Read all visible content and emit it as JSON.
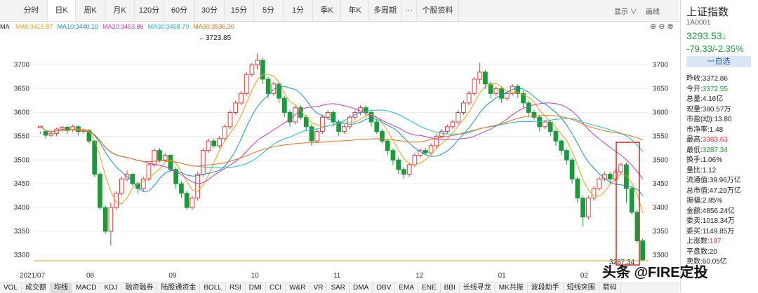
{
  "toolbar": {
    "tabs": [
      "分时",
      "日K",
      "周K",
      "月K",
      "120分",
      "60分",
      "30分",
      "15分",
      "5分",
      "1分",
      "季K",
      "年K",
      "多周期",
      "···",
      "个股资料"
    ],
    "active_tab": "日K",
    "display_label": "显示",
    "draw_label": "画线"
  },
  "ma_bar": {
    "prefix": "MA",
    "items": [
      {
        "label": "MA5:3415.87",
        "color": "#e3a21a"
      },
      {
        "label": "MA10:3440.10",
        "color": "#1a8fd0"
      },
      {
        "label": "MA20:3453.86",
        "color": "#c13dbf"
      },
      {
        "label": "MA30:3458.79",
        "color": "#1ab8d8"
      },
      {
        "label": "MA60:3536.30",
        "color": "#e8701a"
      }
    ]
  },
  "chart_data": {
    "type": "candlestick",
    "y_ticks": [
      3700,
      3650,
      3600,
      3550,
      3500,
      3450,
      3400,
      3350,
      3300
    ],
    "ylim": [
      3285,
      3760
    ],
    "x_labels": [
      "2021/07",
      "08",
      "09",
      "10",
      "11",
      "12",
      "01",
      "02"
    ],
    "annotations": [
      {
        "text": "3723.85",
        "kind": "high"
      },
      {
        "text": "3287.34",
        "kind": "low"
      }
    ],
    "series": [
      {
        "name": "MA5",
        "color": "#e3a21a"
      },
      {
        "name": "MA10",
        "color": "#1a8fd0"
      },
      {
        "name": "MA20",
        "color": "#c13dbf"
      },
      {
        "name": "MA30",
        "color": "#1ab8d8"
      },
      {
        "name": "MA60",
        "color": "#e8701a"
      }
    ],
    "candles": [
      [
        3568,
        3571,
        3560,
        3575,
        3555
      ],
      [
        3560,
        3552,
        3545,
        3562
      ],
      [
        3552,
        3556,
        3548,
        3560
      ],
      [
        3556,
        3565,
        3550,
        3568
      ],
      [
        3565,
        3569,
        3560,
        3572
      ],
      [
        3569,
        3563,
        3555,
        3572
      ],
      [
        3563,
        3570,
        3558,
        3575
      ],
      [
        3570,
        3560,
        3552,
        3573
      ],
      [
        3560,
        3562,
        3555,
        3565
      ],
      [
        3562,
        3540,
        3535,
        3565
      ],
      [
        3540,
        3470,
        3465,
        3542
      ],
      [
        3470,
        3400,
        3395,
        3475
      ],
      [
        3400,
        3350,
        3345,
        3405
      ],
      [
        3350,
        3400,
        3320,
        3410
      ],
      [
        3400,
        3430,
        3395,
        3435
      ],
      [
        3430,
        3460,
        3425,
        3465
      ],
      [
        3460,
        3470,
        3455,
        3478
      ],
      [
        3470,
        3450,
        3445,
        3472
      ],
      [
        3450,
        3440,
        3430,
        3455
      ],
      [
        3440,
        3460,
        3435,
        3465
      ],
      [
        3460,
        3490,
        3455,
        3495
      ],
      [
        3490,
        3520,
        3485,
        3525
      ],
      [
        3520,
        3500,
        3495,
        3525
      ],
      [
        3500,
        3510,
        3495,
        3515
      ],
      [
        3510,
        3480,
        3475,
        3512
      ],
      [
        3480,
        3450,
        3440,
        3485
      ],
      [
        3450,
        3430,
        3420,
        3455
      ],
      [
        3430,
        3400,
        3395,
        3435
      ],
      [
        3400,
        3420,
        3395,
        3425
      ],
      [
        3420,
        3470,
        3415,
        3475
      ],
      [
        3470,
        3520,
        3465,
        3525
      ],
      [
        3520,
        3540,
        3515,
        3545
      ],
      [
        3540,
        3530,
        3525,
        3545
      ],
      [
        3530,
        3545,
        3525,
        3550
      ],
      [
        3545,
        3570,
        3540,
        3575
      ],
      [
        3570,
        3600,
        3565,
        3605
      ],
      [
        3600,
        3620,
        3595,
        3625
      ],
      [
        3620,
        3640,
        3615,
        3645
      ],
      [
        3640,
        3680,
        3635,
        3685
      ],
      [
        3680,
        3700,
        3675,
        3705
      ],
      [
        3700,
        3710,
        3690,
        3724
      ],
      [
        3710,
        3670,
        3660,
        3715
      ],
      [
        3670,
        3640,
        3630,
        3675
      ],
      [
        3640,
        3660,
        3635,
        3665
      ],
      [
        3660,
        3630,
        3620,
        3665
      ],
      [
        3630,
        3600,
        3590,
        3635
      ],
      [
        3600,
        3580,
        3570,
        3605
      ],
      [
        3580,
        3610,
        3575,
        3615
      ],
      [
        3610,
        3590,
        3585,
        3615
      ],
      [
        3590,
        3570,
        3560,
        3595
      ],
      [
        3570,
        3540,
        3530,
        3575
      ],
      [
        3540,
        3560,
        3535,
        3565
      ],
      [
        3560,
        3590,
        3555,
        3595
      ],
      [
        3590,
        3600,
        3585,
        3605
      ],
      [
        3600,
        3580,
        3570,
        3605
      ],
      [
        3580,
        3560,
        3550,
        3585
      ],
      [
        3560,
        3570,
        3555,
        3575
      ],
      [
        3570,
        3590,
        3565,
        3595
      ],
      [
        3590,
        3600,
        3585,
        3605
      ],
      [
        3600,
        3610,
        3595,
        3615
      ],
      [
        3610,
        3600,
        3590,
        3615
      ],
      [
        3600,
        3580,
        3570,
        3605
      ],
      [
        3580,
        3560,
        3555,
        3585
      ],
      [
        3560,
        3540,
        3535,
        3565
      ],
      [
        3540,
        3520,
        3510,
        3545
      ],
      [
        3520,
        3500,
        3490,
        3525
      ],
      [
        3500,
        3480,
        3470,
        3505
      ],
      [
        3480,
        3470,
        3460,
        3485
      ],
      [
        3470,
        3490,
        3465,
        3495
      ],
      [
        3490,
        3510,
        3485,
        3515
      ],
      [
        3510,
        3520,
        3505,
        3525
      ],
      [
        3520,
        3515,
        3510,
        3525
      ],
      [
        3515,
        3530,
        3510,
        3535
      ],
      [
        3530,
        3550,
        3525,
        3555
      ],
      [
        3550,
        3560,
        3545,
        3565
      ],
      [
        3560,
        3570,
        3555,
        3575
      ],
      [
        3570,
        3580,
        3565,
        3585
      ],
      [
        3580,
        3600,
        3575,
        3605
      ],
      [
        3600,
        3620,
        3595,
        3625
      ],
      [
        3620,
        3640,
        3615,
        3645
      ],
      [
        3640,
        3670,
        3635,
        3675
      ],
      [
        3670,
        3685,
        3660,
        3705
      ],
      [
        3685,
        3660,
        3650,
        3690
      ],
      [
        3660,
        3640,
        3630,
        3665
      ],
      [
        3640,
        3650,
        3635,
        3655
      ],
      [
        3650,
        3630,
        3620,
        3655
      ],
      [
        3630,
        3640,
        3625,
        3645
      ],
      [
        3640,
        3655,
        3635,
        3660
      ],
      [
        3655,
        3640,
        3630,
        3660
      ],
      [
        3640,
        3620,
        3610,
        3645
      ],
      [
        3620,
        3600,
        3590,
        3625
      ],
      [
        3600,
        3590,
        3585,
        3605
      ],
      [
        3590,
        3570,
        3560,
        3595
      ],
      [
        3570,
        3580,
        3565,
        3585
      ],
      [
        3580,
        3560,
        3550,
        3585
      ],
      [
        3560,
        3540,
        3530,
        3565
      ],
      [
        3540,
        3520,
        3510,
        3545
      ],
      [
        3520,
        3500,
        3490,
        3525
      ],
      [
        3500,
        3460,
        3450,
        3505
      ],
      [
        3460,
        3420,
        3410,
        3465
      ],
      [
        3420,
        3380,
        3360,
        3425
      ],
      [
        3380,
        3420,
        3375,
        3425
      ],
      [
        3420,
        3440,
        3415,
        3445
      ],
      [
        3440,
        3460,
        3435,
        3465
      ],
      [
        3460,
        3470,
        3455,
        3475
      ],
      [
        3470,
        3460,
        3450,
        3475
      ],
      [
        3460,
        3475,
        3455,
        3480
      ],
      [
        3475,
        3490,
        3470,
        3495
      ],
      [
        3490,
        3440,
        3410,
        3495
      ],
      [
        3440,
        3390,
        3385,
        3445
      ],
      [
        3390,
        3330,
        3325,
        3395
      ],
      [
        3330,
        3290,
        3287,
        3335
      ]
    ]
  },
  "sidebar": {
    "name": "上证指数",
    "code": "1A0001",
    "price": "3293.53↓",
    "change": "-79.33/-2.35%",
    "watch_label": "一自选",
    "rows": [
      {
        "k": "昨收:",
        "v": "3372.86",
        "c": "#222"
      },
      {
        "k": "今开:",
        "v": "3372.55",
        "c": "#1a9b3a"
      },
      {
        "k": "总量:",
        "v": "4.16亿",
        "c": "#222"
      },
      {
        "k": "现量:",
        "v": "380.57万",
        "c": "#222"
      },
      {
        "k": "市盈(动):",
        "v": "13.80",
        "c": "#222"
      },
      {
        "k": "市净率:",
        "v": "1.48",
        "c": "#222"
      },
      {
        "k": "最高:",
        "v": "3383.63",
        "c": "#d33"
      },
      {
        "k": "最低:",
        "v": "3287.34",
        "c": "#1a9b3a"
      },
      {
        "k": "换手:",
        "v": "1.06%",
        "c": "#222"
      },
      {
        "k": "量比:",
        "v": "1.12",
        "c": "#222"
      },
      {
        "k": "流通值:",
        "v": "39.96万亿",
        "c": "#222"
      },
      {
        "k": "总市值:",
        "v": "47.29万亿",
        "c": "#222"
      },
      {
        "k": "振幅:",
        "v": "2.85%",
        "c": "#222"
      },
      {
        "k": "金额:",
        "v": "4856.24亿",
        "c": "#222"
      },
      {
        "k": "委卖:",
        "v": "1018.34万",
        "c": "#222"
      },
      {
        "k": "委买:",
        "v": "1149.85万",
        "c": "#222"
      },
      {
        "k": "上涨数:",
        "v": "197",
        "c": "#d33"
      },
      {
        "k": "平盘数:",
        "v": "20",
        "c": "#222"
      },
      {
        "k": "卖数:",
        "v": "60.05亿",
        "c": "#222"
      }
    ]
  },
  "indicators": {
    "items": [
      "VOL",
      "成交额",
      "均线",
      "MACD",
      "KDJ",
      "融资融券",
      "陆股通资金",
      "BOLL",
      "RSI",
      "DMI",
      "CCI",
      "W&R",
      "VR",
      "SAR",
      "DMA",
      "OBV",
      "EMA",
      "ENE",
      "BBI",
      "长线寻龙",
      "MK共振",
      "波段助手",
      "短线突围"
    ],
    "active": "均线",
    "settings_label": "箭码"
  },
  "watermark": "头条 @FIRE定投",
  "colors": {
    "up": "#e33b3b",
    "down": "#1a9b3a",
    "highlight_box": "#e02020"
  }
}
